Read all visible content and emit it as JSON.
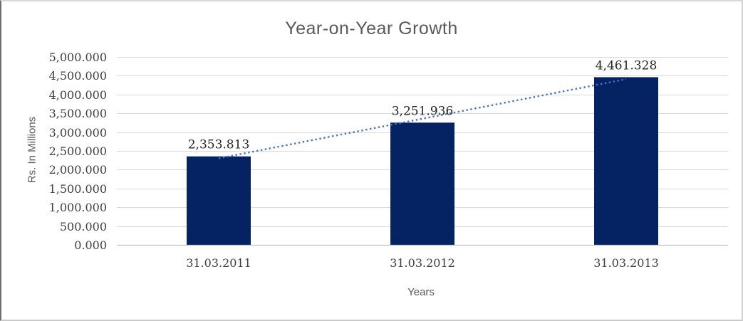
{
  "chart_data": {
    "type": "bar",
    "title": "Year-on-Year Growth",
    "xlabel": "Years",
    "ylabel": "Rs. In Millions",
    "categories": [
      "31.03.2011",
      "31.03.2012",
      "31.03.2013"
    ],
    "values": [
      2353.813,
      3251.936,
      4461.328
    ],
    "value_labels": [
      "2,353.813",
      "3,251.936",
      "4,461.328"
    ],
    "ylim": [
      0,
      5000
    ],
    "ytick_step": 500,
    "ytick_labels": [
      "0.000",
      "500.000",
      "1,000.000",
      "1,500.000",
      "2,000.000",
      "2,500.000",
      "3,000.000",
      "3,500.000",
      "4,000.000",
      "4,500.000",
      "5,000.000"
    ],
    "grid": true,
    "legend": "none",
    "trendline": {
      "fit": "linear",
      "style": "dotted"
    },
    "colors": {
      "bar": "#052363",
      "trendline": "#4472c4",
      "gridline": "#d9d9d9",
      "axis_line": "#c0c0c0",
      "title_text": "#595959",
      "axis_title_text": "#595959",
      "tick_text": "#3f3f3f",
      "value_label_text": "#262626"
    }
  }
}
